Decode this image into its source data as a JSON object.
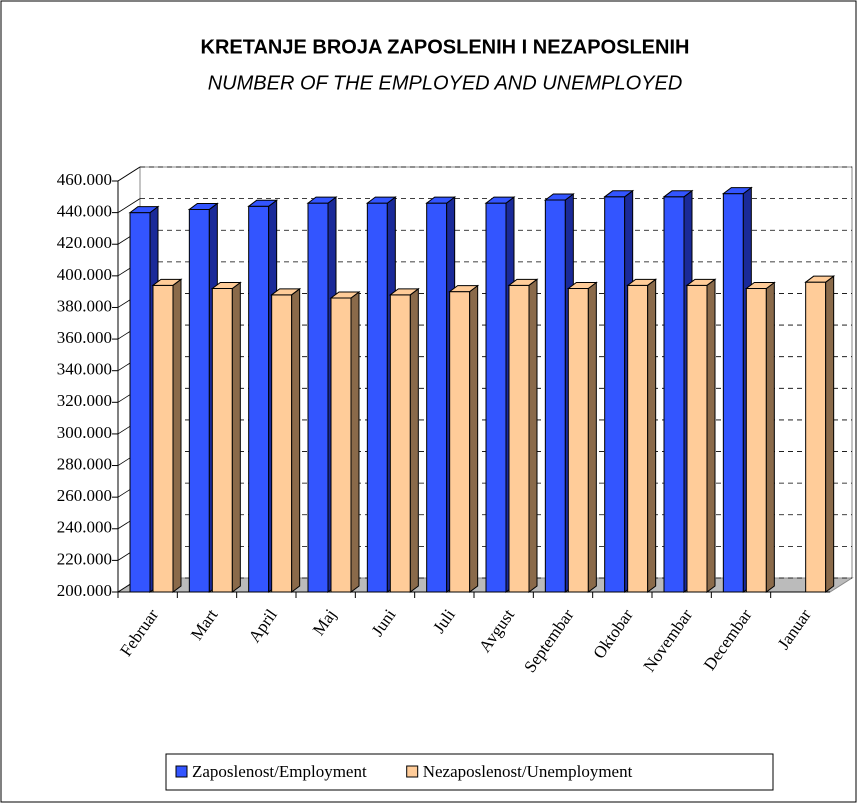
{
  "chart_data": {
    "type": "bar3d",
    "title": "KRETANJE BROJA ZAPOSLENIH I NEZAPOSLENIH",
    "subtitle": "NUMBER OF THE EMPLOYED AND UNEMPLOYED",
    "categories": [
      "Februar",
      "Mart",
      "April",
      "Maj",
      "Juni",
      "Juli",
      "Avgust",
      "Septembar",
      "Oktobar",
      "Novembar",
      "Decembar",
      "Januar"
    ],
    "series": [
      {
        "name": "Zaposlenost/Employment",
        "color": "#3355ff",
        "values": [
          440000,
          442000,
          444000,
          446000,
          446000,
          446000,
          446000,
          448000,
          450000,
          450000,
          452000,
          null
        ]
      },
      {
        "name": "Nezaposlenost/Unemployment",
        "color": "#ffcc99",
        "values": [
          394000,
          392000,
          388000,
          386000,
          388000,
          390000,
          394000,
          392000,
          394000,
          394000,
          392000,
          396000
        ]
      }
    ],
    "ylim": [
      200000,
      460000
    ],
    "yticks": [
      {
        "value": 200000,
        "label": "200.000"
      },
      {
        "value": 220000,
        "label": "220.000"
      },
      {
        "value": 240000,
        "label": "240.000"
      },
      {
        "value": 260000,
        "label": "260.000"
      },
      {
        "value": 280000,
        "label": "280.000"
      },
      {
        "value": 300000,
        "label": "300.000"
      },
      {
        "value": 320000,
        "label": "320.000"
      },
      {
        "value": 340000,
        "label": "340.000"
      },
      {
        "value": 360000,
        "label": "360.000"
      },
      {
        "value": 380000,
        "label": "380.000"
      },
      {
        "value": 400000,
        "label": "400.000"
      },
      {
        "value": 420000,
        "label": "420.000"
      },
      {
        "value": 440000,
        "label": "440.000"
      },
      {
        "value": 460000,
        "label": "460.000"
      }
    ],
    "grid": true,
    "legend": "bottom"
  }
}
